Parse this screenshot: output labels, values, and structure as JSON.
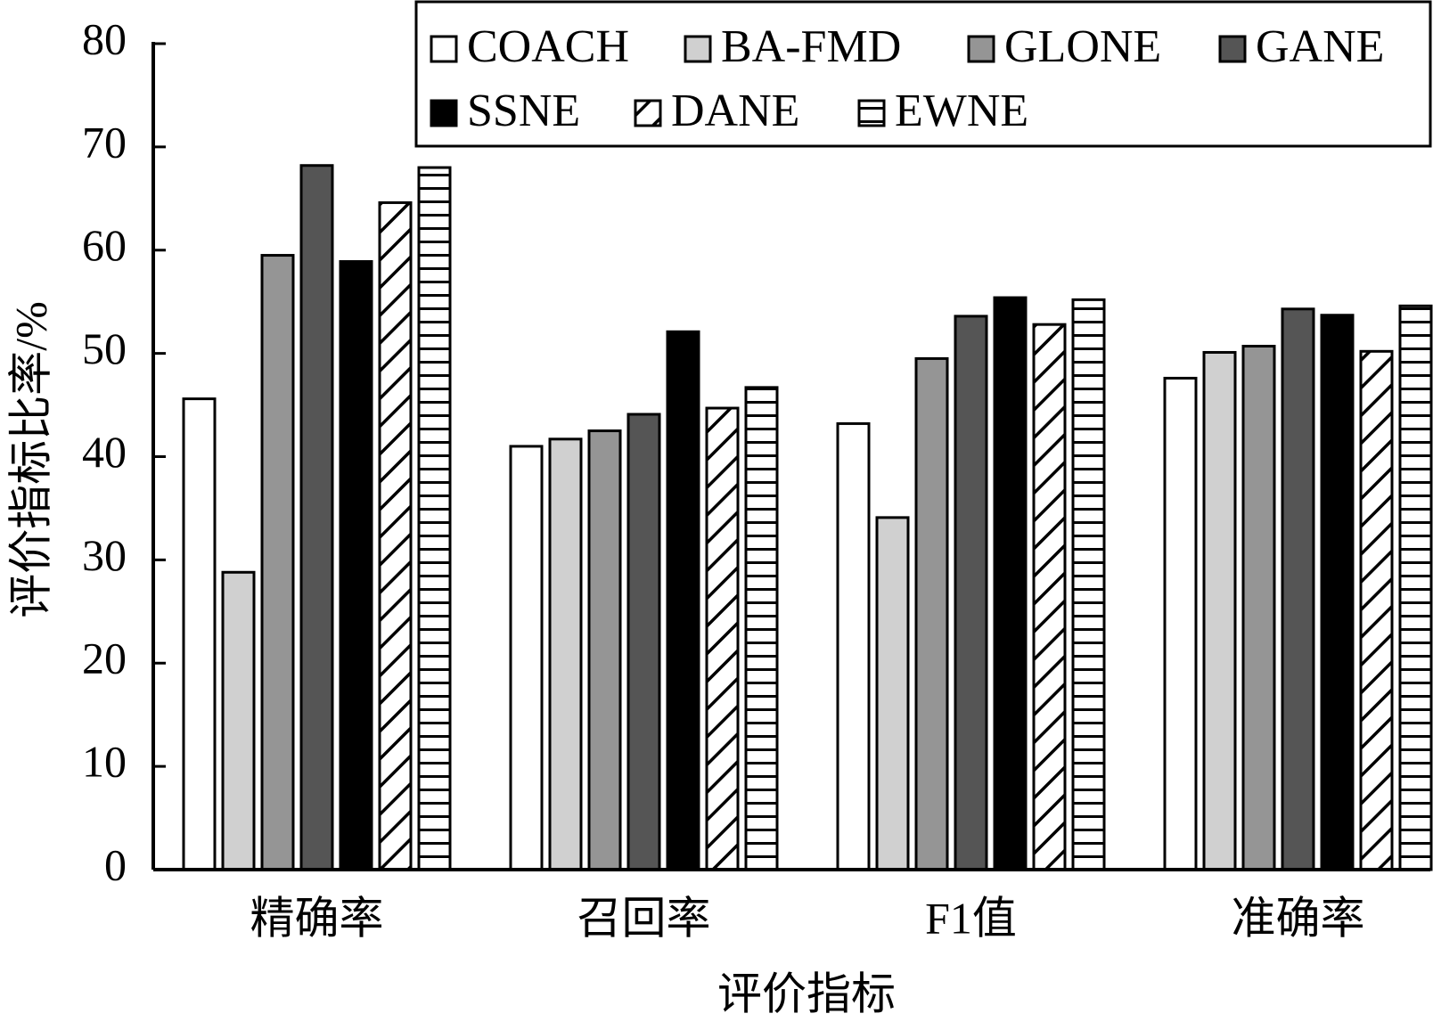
{
  "chart_data": {
    "type": "bar",
    "x_label": "评价指标",
    "y_label": "评价指标比率/%",
    "categories": [
      "精确率",
      "召回率",
      "F1值",
      "准确率"
    ],
    "series": [
      {
        "name": "COACH",
        "color": "#ffffff",
        "values": [
          45.6,
          41.0,
          43.2,
          47.6
        ]
      },
      {
        "name": "BA-FMD",
        "color": "#d0d0d0",
        "values": [
          28.8,
          41.7,
          34.1,
          50.1
        ]
      },
      {
        "name": "GLONE",
        "color": "#959595",
        "values": [
          59.5,
          42.5,
          49.5,
          50.7
        ]
      },
      {
        "name": "GANE",
        "color": "#555555",
        "values": [
          68.2,
          44.1,
          53.6,
          54.3
        ]
      },
      {
        "name": "SSNE",
        "color": "#000000",
        "values": [
          58.9,
          52.1,
          55.4,
          53.7
        ]
      },
      {
        "name": "DANE",
        "color": "#ffffff",
        "hatch": "diagonal",
        "values": [
          64.6,
          44.7,
          52.8,
          50.2
        ]
      },
      {
        "name": "EWNE",
        "color": "#ffffff",
        "hatch": "horizontal",
        "values": [
          68.0,
          46.7,
          55.2,
          54.6
        ]
      }
    ],
    "ylim": [
      0,
      80
    ],
    "yticks": [
      0,
      10,
      20,
      30,
      40,
      50,
      60,
      70,
      80
    ],
    "grid": false,
    "legend": "top-right"
  }
}
